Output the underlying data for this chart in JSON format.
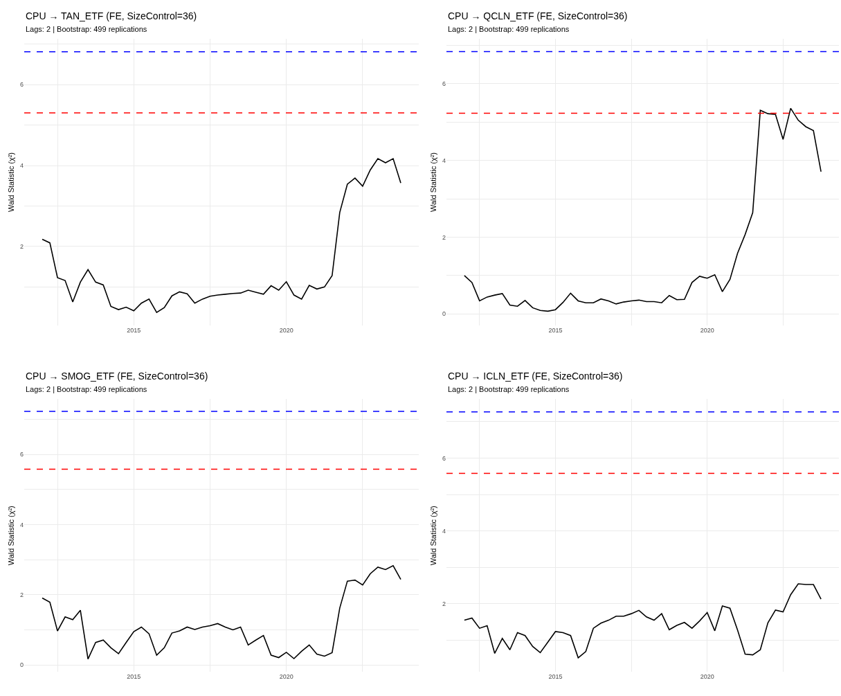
{
  "chart_data": [
    {
      "type": "line",
      "title": "CPU → TAN_ETF (FE, SizeControl=36)",
      "subtitle": "Lags: 2 | Bootstrap: 499 replications",
      "ylabel": "Wald Statistic (χ²)",
      "x": [
        2012.0,
        2012.25,
        2012.5,
        2012.75,
        2013.0,
        2013.25,
        2013.5,
        2013.75,
        2014.0,
        2014.25,
        2014.5,
        2014.75,
        2015.0,
        2015.25,
        2015.5,
        2015.75,
        2016.0,
        2016.25,
        2016.5,
        2016.75,
        2017.0,
        2017.25,
        2017.5,
        2017.75,
        2018.0,
        2018.25,
        2018.5,
        2018.75,
        2019.0,
        2019.25,
        2019.5,
        2019.75,
        2020.0,
        2020.25,
        2020.5,
        2020.75,
        2021.0,
        2021.25,
        2021.5,
        2021.75,
        2022.0,
        2022.25,
        2022.5,
        2022.75,
        2023.0,
        2023.25,
        2023.5,
        2023.75
      ],
      "series": [
        {
          "color": "#000000",
          "values": [
            2.18,
            2.09,
            1.23,
            1.16,
            0.63,
            1.12,
            1.43,
            1.12,
            1.05,
            0.52,
            0.44,
            0.5,
            0.41,
            0.6,
            0.7,
            0.37,
            0.49,
            0.78,
            0.88,
            0.83,
            0.6,
            0.7,
            0.77,
            0.8,
            0.82,
            0.84,
            0.85,
            0.92,
            0.87,
            0.82,
            1.03,
            0.92,
            1.13,
            0.8,
            0.7,
            1.04,
            0.95,
            1.0,
            1.28,
            2.84,
            3.54,
            3.69,
            3.49,
            3.89,
            4.17,
            4.07,
            4.17,
            3.57
          ]
        }
      ],
      "xlim": [
        2011.41,
        2024.34
      ],
      "ylim": [
        0.05,
        7.13
      ],
      "xticks": [
        {
          "value": 2012.5,
          "label": null
        },
        2015,
        {
          "value": 2017.5,
          "label": null
        },
        2020,
        {
          "value": 2022.5,
          "label": null
        }
      ],
      "yticks": [
        {
          "value": 1,
          "label": null
        },
        2,
        {
          "value": 3,
          "label": null
        },
        4,
        {
          "value": 5,
          "label": null
        },
        6,
        {
          "value": 7,
          "label": null
        }
      ],
      "ref_lines": [
        {
          "axis": "y",
          "value": 6.81,
          "color": "#0000ff",
          "line_style": "dashed"
        },
        {
          "axis": "y",
          "value": 5.3,
          "color": "#ff0000",
          "line_style": "dashed"
        }
      ],
      "grid": true
    },
    {
      "type": "line",
      "title": "CPU → QCLN_ETF (FE, SizeControl=36)",
      "subtitle": "Lags: 2 | Bootstrap: 499 replications",
      "ylabel": "Wald Statistic (χ²)",
      "x": [
        2012.0,
        2012.25,
        2012.5,
        2012.75,
        2013.0,
        2013.25,
        2013.5,
        2013.75,
        2014.0,
        2014.25,
        2014.5,
        2014.75,
        2015.0,
        2015.25,
        2015.5,
        2015.75,
        2016.0,
        2016.25,
        2016.5,
        2016.75,
        2017.0,
        2017.25,
        2017.5,
        2017.75,
        2018.0,
        2018.25,
        2018.5,
        2018.75,
        2019.0,
        2019.25,
        2019.5,
        2019.75,
        2020.0,
        2020.25,
        2020.5,
        2020.75,
        2021.0,
        2021.25,
        2021.5,
        2021.75,
        2022.0,
        2022.25,
        2022.5,
        2022.75,
        2023.0,
        2023.25,
        2023.5,
        2023.75
      ],
      "series": [
        {
          "color": "#000000",
          "values": [
            1.0,
            0.82,
            0.34,
            0.44,
            0.49,
            0.53,
            0.23,
            0.2,
            0.35,
            0.16,
            0.09,
            0.07,
            0.11,
            0.3,
            0.54,
            0.34,
            0.29,
            0.29,
            0.39,
            0.34,
            0.26,
            0.31,
            0.34,
            0.36,
            0.32,
            0.32,
            0.29,
            0.48,
            0.37,
            0.38,
            0.82,
            0.98,
            0.93,
            1.02,
            0.58,
            0.9,
            1.58,
            2.07,
            2.64,
            5.31,
            5.22,
            5.2,
            4.55,
            5.36,
            5.05,
            4.88,
            4.78,
            3.71
          ]
        }
      ],
      "xlim": [
        2011.41,
        2024.34
      ],
      "ylim": [
        -0.3,
        7.17
      ],
      "xticks": [
        {
          "value": 2012.5,
          "label": null
        },
        2015,
        {
          "value": 2017.5,
          "label": null
        },
        2020,
        {
          "value": 2022.5,
          "label": null
        }
      ],
      "yticks": [
        0,
        {
          "value": 1,
          "label": null
        },
        2,
        {
          "value": 3,
          "label": null
        },
        4,
        {
          "value": 5,
          "label": null
        },
        6,
        {
          "value": 7,
          "label": null
        }
      ],
      "ref_lines": [
        {
          "axis": "y",
          "value": 6.84,
          "color": "#0000ff",
          "line_style": "dashed"
        },
        {
          "axis": "y",
          "value": 5.23,
          "color": "#ff0000",
          "line_style": "dashed"
        }
      ],
      "grid": true
    },
    {
      "type": "line",
      "title": "CPU → SMOG_ETF (FE, SizeControl=36)",
      "subtitle": "Lags: 2 | Bootstrap: 499 replications",
      "ylabel": "Wald Statistic (χ²)",
      "x": [
        2012.0,
        2012.25,
        2012.5,
        2012.75,
        2013.0,
        2013.25,
        2013.5,
        2013.75,
        2014.0,
        2014.25,
        2014.5,
        2014.75,
        2015.0,
        2015.25,
        2015.5,
        2015.75,
        2016.0,
        2016.25,
        2016.5,
        2016.75,
        2017.0,
        2017.25,
        2017.5,
        2017.75,
        2018.0,
        2018.25,
        2018.5,
        2018.75,
        2019.0,
        2019.25,
        2019.5,
        2019.75,
        2020.0,
        2020.25,
        2020.5,
        2020.75,
        2021.0,
        2021.25,
        2021.5,
        2021.75,
        2022.0,
        2022.25,
        2022.5,
        2022.75,
        2023.0,
        2023.25,
        2023.5,
        2023.75
      ],
      "series": [
        {
          "color": "#000000",
          "values": [
            1.91,
            1.79,
            0.97,
            1.37,
            1.29,
            1.56,
            0.17,
            0.64,
            0.71,
            0.49,
            0.32,
            0.64,
            0.95,
            1.08,
            0.89,
            0.28,
            0.49,
            0.91,
            0.97,
            1.08,
            1.01,
            1.08,
            1.12,
            1.18,
            1.08,
            1.0,
            1.08,
            0.57,
            0.71,
            0.84,
            0.28,
            0.21,
            0.36,
            0.18,
            0.39,
            0.57,
            0.31,
            0.25,
            0.35,
            1.62,
            2.39,
            2.42,
            2.28,
            2.6,
            2.79,
            2.72,
            2.83,
            2.44
          ]
        }
      ],
      "xlim": [
        2011.41,
        2024.34
      ],
      "ylim": [
        -0.2,
        7.58
      ],
      "xticks": [
        {
          "value": 2012.5,
          "label": null
        },
        2015,
        {
          "value": 2017.5,
          "label": null
        },
        2020,
        {
          "value": 2022.5,
          "label": null
        }
      ],
      "yticks": [
        0,
        {
          "value": 1,
          "label": null
        },
        2,
        {
          "value": 3,
          "label": null
        },
        4,
        {
          "value": 5,
          "label": null
        },
        6,
        {
          "value": 7,
          "label": null
        }
      ],
      "ref_lines": [
        {
          "axis": "y",
          "value": 7.23,
          "color": "#0000ff",
          "line_style": "dashed"
        },
        {
          "axis": "y",
          "value": 5.58,
          "color": "#ff0000",
          "line_style": "dashed"
        }
      ],
      "grid": true
    },
    {
      "type": "line",
      "title": "CPU → ICLN_ETF (FE, SizeControl=36)",
      "subtitle": "Lags: 2 | Bootstrap: 499 replications",
      "ylabel": "Wald Statistic (χ²)",
      "x": [
        2012.0,
        2012.25,
        2012.5,
        2012.75,
        2013.0,
        2013.25,
        2013.5,
        2013.75,
        2014.0,
        2014.25,
        2014.5,
        2014.75,
        2015.0,
        2015.25,
        2015.5,
        2015.75,
        2016.0,
        2016.25,
        2016.5,
        2016.75,
        2017.0,
        2017.25,
        2017.5,
        2017.75,
        2018.0,
        2018.25,
        2018.5,
        2018.75,
        2019.0,
        2019.25,
        2019.5,
        2019.75,
        2020.0,
        2020.25,
        2020.5,
        2020.75,
        2021.0,
        2021.25,
        2021.5,
        2021.75,
        2022.0,
        2022.25,
        2022.5,
        2022.75,
        2023.0,
        2023.25,
        2023.5,
        2023.75
      ],
      "series": [
        {
          "color": "#000000",
          "values": [
            1.55,
            1.61,
            1.33,
            1.4,
            0.64,
            1.05,
            0.74,
            1.21,
            1.13,
            0.83,
            0.66,
            0.95,
            1.24,
            1.21,
            1.13,
            0.52,
            0.69,
            1.33,
            1.47,
            1.55,
            1.66,
            1.66,
            1.73,
            1.82,
            1.64,
            1.55,
            1.73,
            1.29,
            1.41,
            1.49,
            1.33,
            1.53,
            1.76,
            1.26,
            1.94,
            1.88,
            1.28,
            0.62,
            0.6,
            0.74,
            1.48,
            1.83,
            1.78,
            2.25,
            2.55,
            2.53,
            2.53,
            2.13
          ]
        }
      ],
      "xlim": [
        2011.41,
        2024.34
      ],
      "ylim": [
        0.13,
        7.62
      ],
      "xticks": [
        {
          "value": 2012.5,
          "label": null
        },
        2015,
        {
          "value": 2017.5,
          "label": null
        },
        2020,
        {
          "value": 2022.5,
          "label": null
        }
      ],
      "yticks": [
        {
          "value": 1,
          "label": null
        },
        2,
        {
          "value": 3,
          "label": null
        },
        4,
        {
          "value": 5,
          "label": null
        },
        6,
        {
          "value": 7,
          "label": null
        }
      ],
      "ref_lines": [
        {
          "axis": "y",
          "value": 7.27,
          "color": "#0000ff",
          "line_style": "dashed"
        },
        {
          "axis": "y",
          "value": 5.58,
          "color": "#ff0000",
          "line_style": "dashed"
        }
      ],
      "grid": true
    }
  ]
}
